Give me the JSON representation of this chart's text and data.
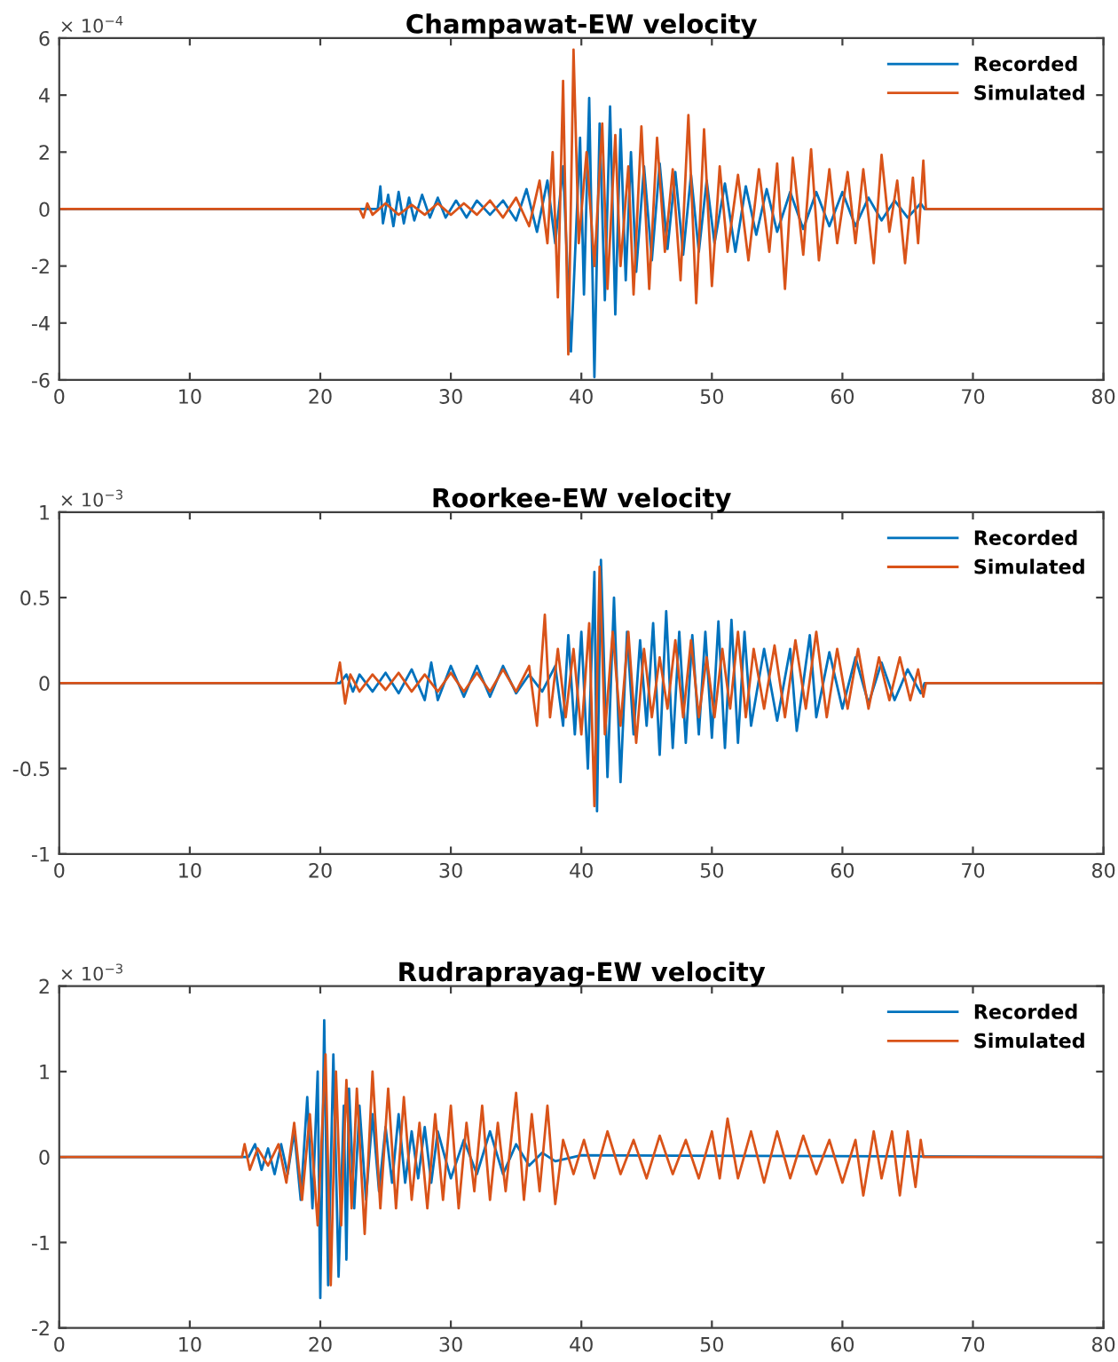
{
  "chart_data": [
    {
      "type": "line",
      "title": "Champawat-EW velocity",
      "annotations": [
        "× 10$^{−4}$"
      ],
      "legend": "top right",
      "grid": false,
      "line_style": "solid",
      "marker": "none",
      "xlim": [
        0,
        80
      ],
      "xticks": [
        0,
        10,
        20,
        30,
        40,
        50,
        60,
        70,
        80
      ],
      "ylim": [
        -6,
        6
      ],
      "yticks": [
        -6,
        -4,
        -2,
        0,
        2,
        4,
        6
      ],
      "series": [
        {
          "name": "Recorded",
          "color": "#0072bd",
          "x": [
            0,
            24.4,
            24.6,
            24.8,
            25.2,
            25.6,
            26,
            26.4,
            26.8,
            27.2,
            27.8,
            28.4,
            29,
            29.6,
            30.4,
            31.2,
            32,
            33,
            34,
            35,
            35.8,
            36.6,
            37.4,
            38,
            38.6,
            39.2,
            39.9,
            40.2,
            40.6,
            41,
            41.4,
            41.8,
            42.2,
            42.6,
            43,
            43.4,
            43.8,
            44.2,
            44.8,
            45.4,
            46,
            46.6,
            47.2,
            47.8,
            48.4,
            49,
            49.6,
            50.2,
            51,
            51.8,
            52.6,
            53.4,
            54.2,
            55,
            56,
            57,
            58,
            59,
            60,
            61,
            62,
            63,
            64,
            65,
            66,
            66.3,
            80
          ],
          "values": [
            0,
            0,
            0.8,
            -0.5,
            0.5,
            -0.6,
            0.6,
            -0.5,
            0.4,
            -0.4,
            0.5,
            -0.3,
            0.4,
            -0.3,
            0.3,
            -0.3,
            0.3,
            -0.2,
            0.3,
            -0.4,
            0.7,
            -0.8,
            1.0,
            -1.2,
            1.5,
            -5.0,
            2.5,
            -3.0,
            3.9,
            -5.9,
            3.0,
            -3.2,
            3.6,
            -3.7,
            2.8,
            -2.5,
            2.0,
            -2.2,
            1.5,
            -1.8,
            1.6,
            -1.4,
            1.3,
            -1.6,
            1.2,
            -1.5,
            1.0,
            -1.2,
            0.9,
            -1.5,
            0.8,
            -0.9,
            0.7,
            -0.8,
            0.6,
            -0.7,
            0.6,
            -0.6,
            0.6,
            -0.6,
            0.4,
            -0.4,
            0.3,
            -0.3,
            0.2,
            0,
            0
          ]
        },
        {
          "name": "Simulated",
          "color": "#d95319",
          "x": [
            0,
            23,
            23.3,
            23.6,
            24,
            25,
            26,
            27,
            28,
            29,
            30,
            31,
            32,
            33,
            34,
            35,
            36,
            36.8,
            37.4,
            37.8,
            38.2,
            38.6,
            39,
            39.4,
            39.8,
            40.4,
            41,
            41.6,
            42,
            42.6,
            43,
            43.6,
            44,
            44.6,
            45.2,
            45.8,
            46.4,
            47,
            47.6,
            48.2,
            48.8,
            49.4,
            50,
            50.6,
            51.2,
            52,
            52.8,
            53.6,
            54.4,
            55,
            55.6,
            56.2,
            57,
            57.6,
            58.2,
            59,
            59.6,
            60.4,
            61,
            61.6,
            62.4,
            63,
            63.6,
            64.2,
            64.8,
            65.4,
            65.8,
            66.2,
            66.4,
            80
          ],
          "values": [
            0,
            0,
            -0.3,
            0.2,
            -0.2,
            0.2,
            -0.2,
            0.15,
            -0.2,
            0.2,
            -0.2,
            0.2,
            -0.2,
            0.3,
            -0.3,
            0.4,
            -0.6,
            1.0,
            -1.2,
            2.0,
            -3.1,
            4.5,
            -5.1,
            5.6,
            -1.2,
            2.0,
            -2.0,
            3.0,
            -2.8,
            2.6,
            -2.0,
            1.5,
            -3.0,
            2.9,
            -2.8,
            2.5,
            -1.5,
            1.4,
            -2.5,
            3.3,
            -3.3,
            2.8,
            -2.7,
            1.5,
            -1.5,
            1.2,
            -1.8,
            1.4,
            -1.5,
            1.6,
            -2.8,
            1.8,
            -1.6,
            2.1,
            -1.8,
            1.4,
            -1.2,
            1.3,
            -1.2,
            1.4,
            -1.9,
            1.9,
            -0.8,
            1.0,
            -1.9,
            1.1,
            -1.2,
            1.7,
            0,
            0
          ]
        }
      ]
    },
    {
      "type": "line",
      "title": "Roorkee-EW velocity",
      "annotations": [
        "× 10$^{−3}$"
      ],
      "legend": "top right",
      "grid": false,
      "line_style": "solid",
      "marker": "none",
      "xlim": [
        0,
        80
      ],
      "xticks": [
        0,
        10,
        20,
        30,
        40,
        50,
        60,
        70,
        80
      ],
      "ylim": [
        -1,
        1
      ],
      "yticks": [
        -1,
        -0.5,
        0,
        0.5,
        1
      ],
      "series": [
        {
          "name": "Recorded",
          "color": "#0072bd",
          "x": [
            0,
            21.5,
            22,
            22.5,
            23,
            24,
            25,
            26,
            27,
            28,
            28.5,
            29,
            30,
            31,
            32,
            33,
            34,
            35,
            36,
            37,
            38,
            38.6,
            39,
            39.5,
            40,
            40.5,
            41,
            41.2,
            41.5,
            42,
            42.5,
            43,
            43.5,
            44,
            44.5,
            45,
            45.5,
            46,
            46.5,
            47,
            47.5,
            48,
            48.5,
            49,
            49.5,
            50,
            50.5,
            51,
            51.5,
            52,
            52.5,
            53,
            54,
            55,
            56,
            56.5,
            57.5,
            58,
            59,
            60,
            61,
            62,
            63,
            64,
            65,
            66,
            66.3,
            80
          ],
          "values": [
            0,
            0,
            0.05,
            -0.05,
            0.05,
            -0.05,
            0.06,
            -0.06,
            0.08,
            -0.1,
            0.12,
            -0.1,
            0.1,
            -0.08,
            0.1,
            -0.08,
            0.1,
            -0.06,
            0.05,
            -0.05,
            0.1,
            -0.25,
            0.28,
            -0.3,
            0.3,
            -0.5,
            0.65,
            -0.75,
            0.72,
            -0.55,
            0.5,
            -0.58,
            0.3,
            -0.3,
            0.25,
            -0.25,
            0.35,
            -0.42,
            0.42,
            -0.38,
            0.3,
            -0.35,
            0.28,
            -0.3,
            0.3,
            -0.32,
            0.36,
            -0.38,
            0.37,
            -0.35,
            0.3,
            -0.25,
            0.2,
            -0.22,
            0.2,
            -0.28,
            0.28,
            -0.2,
            0.18,
            -0.15,
            0.15,
            -0.12,
            0.12,
            -0.1,
            0.08,
            -0.06,
            0,
            0
          ]
        },
        {
          "name": "Simulated",
          "color": "#d95319",
          "x": [
            0,
            21.2,
            21.5,
            21.9,
            22.3,
            23,
            24,
            25,
            26,
            27,
            28,
            29,
            30,
            31,
            32,
            33,
            34,
            35,
            36,
            36.6,
            37.2,
            37.6,
            38.2,
            38.8,
            39.4,
            40,
            40.6,
            41,
            41.4,
            41.8,
            42.4,
            43,
            43.6,
            44.2,
            44.8,
            45.4,
            46,
            46.6,
            47.2,
            47.8,
            48.4,
            49,
            49.6,
            50.2,
            50.8,
            51.4,
            52,
            52.6,
            53.2,
            54,
            54.8,
            55.6,
            56.4,
            57.2,
            58,
            58.8,
            59.6,
            60.4,
            61.2,
            62,
            62.8,
            63.6,
            64.4,
            65.2,
            65.8,
            66.2,
            66.4,
            80
          ],
          "values": [
            0,
            0,
            0.12,
            -0.12,
            0.05,
            -0.05,
            0.05,
            -0.04,
            0.06,
            -0.05,
            0.05,
            -0.05,
            0.06,
            -0.05,
            0.06,
            -0.05,
            0.08,
            -0.05,
            0.1,
            -0.25,
            0.4,
            -0.2,
            0.2,
            -0.2,
            0.2,
            -0.3,
            0.35,
            -0.72,
            0.68,
            -0.3,
            0.3,
            -0.25,
            0.3,
            -0.35,
            0.2,
            -0.2,
            0.15,
            -0.15,
            0.25,
            -0.2,
            0.25,
            -0.2,
            0.15,
            -0.2,
            0.2,
            -0.15,
            0.3,
            -0.2,
            0.2,
            -0.15,
            0.22,
            -0.2,
            0.25,
            -0.15,
            0.3,
            -0.2,
            0.2,
            -0.15,
            0.2,
            -0.15,
            0.15,
            -0.1,
            0.15,
            -0.1,
            0.08,
            -0.08,
            0,
            0
          ]
        }
      ]
    },
    {
      "type": "line",
      "title": "Rudraprayag-EW velocity",
      "annotations": [
        "× 10$^{−3}$"
      ],
      "legend": "top right",
      "grid": false,
      "line_style": "solid",
      "marker": "none",
      "xlim": [
        0,
        80
      ],
      "xticks": [
        0,
        10,
        20,
        30,
        40,
        50,
        60,
        70,
        80
      ],
      "ylim": [
        -2,
        2
      ],
      "yticks": [
        -2,
        -1,
        0,
        1,
        2
      ],
      "series": [
        {
          "name": "Recorded",
          "color": "#0072bd",
          "x": [
            0,
            14.5,
            15,
            15.5,
            16,
            16.5,
            17,
            17.5,
            18,
            18.5,
            19,
            19.4,
            19.8,
            20,
            20.3,
            20.6,
            21,
            21.4,
            21.8,
            22,
            22.2,
            22.6,
            23,
            23.5,
            24,
            24.5,
            25,
            25.5,
            26,
            26.5,
            27,
            27.5,
            28,
            28.5,
            29,
            30,
            31,
            32,
            33,
            34,
            35,
            36,
            37,
            38,
            40,
            80
          ],
          "values": [
            0,
            0,
            0.15,
            -0.15,
            0.1,
            -0.2,
            0.15,
            -0.2,
            0.3,
            -0.5,
            0.7,
            -0.6,
            1.0,
            -1.65,
            1.6,
            -1.5,
            1.2,
            -1.4,
            0.6,
            -1.2,
            0.8,
            -0.6,
            0.6,
            -0.5,
            0.5,
            -0.4,
            0.35,
            -0.3,
            0.5,
            -0.3,
            0.3,
            -0.25,
            0.35,
            -0.3,
            0.3,
            -0.25,
            0.2,
            -0.2,
            0.3,
            -0.2,
            0.15,
            -0.1,
            0.05,
            -0.05,
            0.02,
            0
          ]
        },
        {
          "name": "Simulated",
          "color": "#d95319",
          "x": [
            0,
            14,
            14.2,
            14.6,
            15.2,
            16,
            16.8,
            17.4,
            18,
            18.6,
            19.2,
            19.8,
            20.4,
            20.8,
            21.2,
            21.6,
            22,
            22.4,
            22.8,
            23.4,
            24,
            24.6,
            25.2,
            25.8,
            26.4,
            27,
            27.6,
            28.2,
            28.8,
            29.4,
            30,
            30.6,
            31.2,
            31.8,
            32.4,
            33,
            33.6,
            34.2,
            35,
            35.6,
            36.2,
            36.8,
            37.4,
            38,
            38.6,
            39.4,
            40.2,
            41,
            42,
            43,
            44,
            45,
            46,
            47,
            48,
            49,
            50,
            50.6,
            51.2,
            52,
            53,
            54,
            55,
            56,
            57,
            58,
            59,
            60,
            61,
            61.6,
            62.4,
            63,
            63.8,
            64.4,
            65,
            65.6,
            66,
            66.2,
            80
          ],
          "values": [
            0,
            0,
            0.15,
            -0.15,
            0.1,
            -0.1,
            0.15,
            -0.3,
            0.4,
            -0.5,
            0.5,
            -0.8,
            1.2,
            -1.5,
            1.0,
            -0.8,
            0.9,
            -0.6,
            0.8,
            -0.9,
            1.0,
            -0.6,
            0.8,
            -0.6,
            0.7,
            -0.5,
            0.4,
            -0.6,
            0.5,
            -0.5,
            0.6,
            -0.6,
            0.4,
            -0.4,
            0.6,
            -0.5,
            0.4,
            -0.4,
            0.75,
            -0.5,
            0.5,
            -0.4,
            0.6,
            -0.55,
            0.2,
            -0.2,
            0.2,
            -0.25,
            0.3,
            -0.2,
            0.2,
            -0.25,
            0.25,
            -0.2,
            0.2,
            -0.25,
            0.3,
            -0.25,
            0.45,
            -0.25,
            0.3,
            -0.3,
            0.3,
            -0.25,
            0.25,
            -0.2,
            0.2,
            -0.3,
            0.2,
            -0.45,
            0.3,
            -0.25,
            0.3,
            -0.45,
            0.3,
            -0.35,
            0.2,
            0,
            0
          ]
        }
      ]
    }
  ]
}
